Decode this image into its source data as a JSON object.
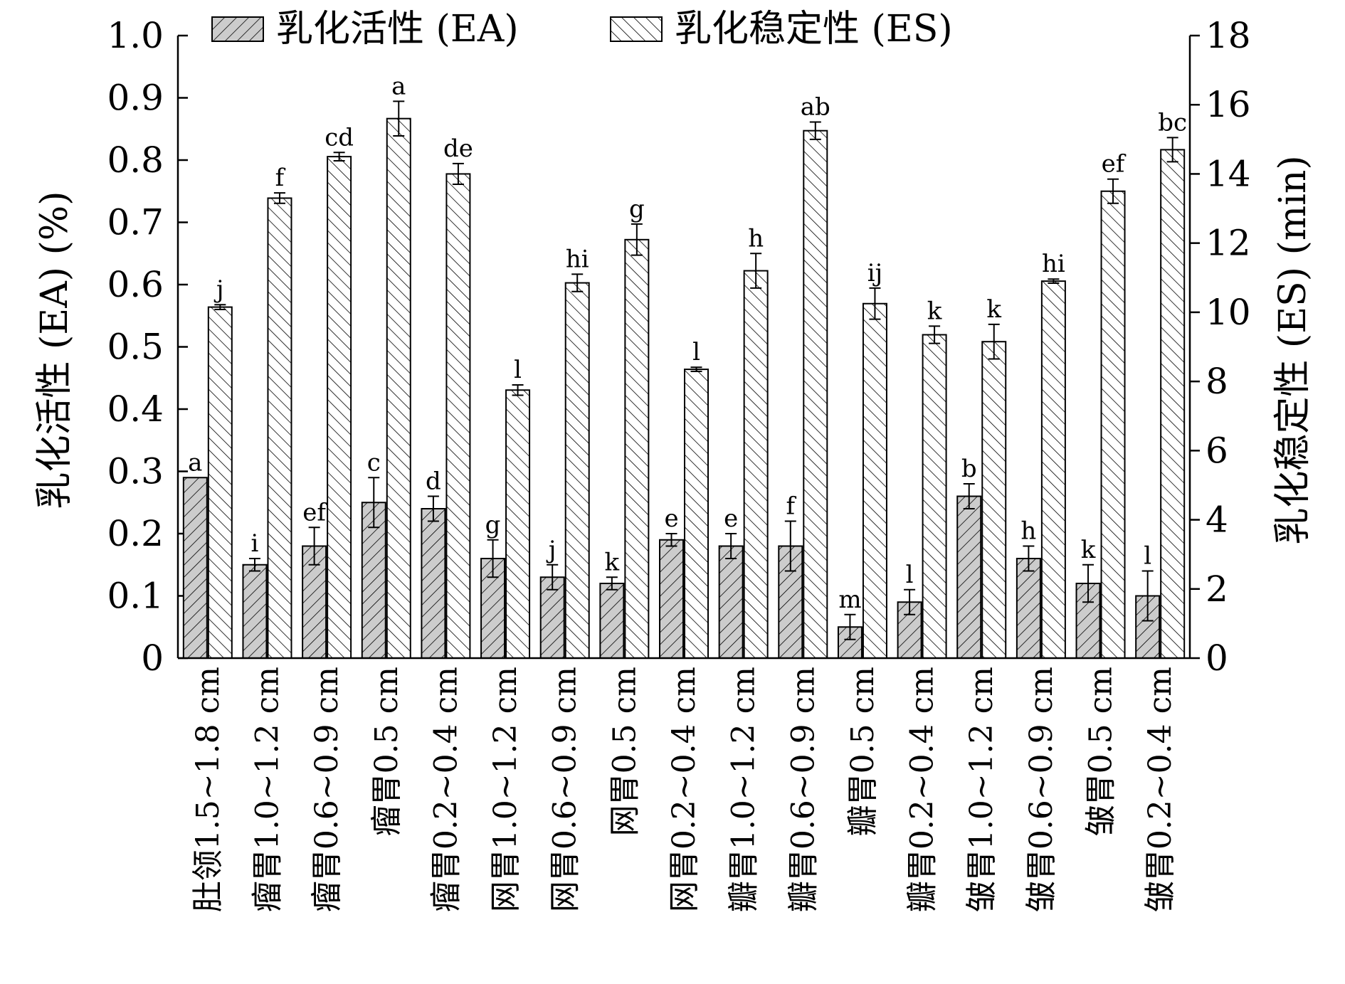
{
  "chart_data": {
    "type": "bar",
    "ylabel": "乳化活性 (EA) (%)",
    "y2label": "乳化稳定性 (ES) (min)",
    "ylim": [
      0,
      1.0
    ],
    "y2lim": [
      0,
      18
    ],
    "yticks": [
      "0",
      "0.1",
      "0.2",
      "0.3",
      "0.4",
      "0.5",
      "0.6",
      "0.7",
      "0.8",
      "0.9",
      "1.0"
    ],
    "y2ticks": [
      "0",
      "2",
      "4",
      "6",
      "8",
      "10",
      "12",
      "14",
      "16",
      "18"
    ],
    "legend_position": "top",
    "categories": [
      "肚领1.5~1.8 cm",
      "瘤胃1.0~1.2 cm",
      "瘤胃0.6~0.9 cm",
      "瘤胃0.5 cm",
      "瘤胃0.2~0.4 cm",
      "网胃1.0~1.2 cm",
      "网胃0.6~0.9 cm",
      "网胃0.5 cm",
      "网胃0.2~0.4 cm",
      "瓣胃1.0~1.2 cm",
      "瓣胃0.6~0.9 cm",
      "瓣胃0.5 cm",
      "瓣胃0.2~0.4 cm",
      "皱胃1.0~1.2 cm",
      "皱胃0.6~0.9 cm",
      "皱胃0.5 cm",
      "皱胃0.2~0.4 cm"
    ],
    "series": [
      {
        "name": "乳化活性 (EA)",
        "axis": "left",
        "pattern": "hatch-gray",
        "fill_color": "#cccccc",
        "values": [
          0.29,
          0.15,
          0.18,
          0.25,
          0.24,
          0.16,
          0.13,
          0.12,
          0.19,
          0.18,
          0.18,
          0.05,
          0.09,
          0.26,
          0.16,
          0.12,
          0.1
        ],
        "errors": [
          0.0,
          0.01,
          0.03,
          0.04,
          0.02,
          0.03,
          0.02,
          0.01,
          0.01,
          0.02,
          0.04,
          0.02,
          0.02,
          0.02,
          0.02,
          0.03,
          0.04
        ],
        "sig_labels": [
          "a",
          "i",
          "ef",
          "c",
          "d",
          "g",
          "j",
          "k",
          "e",
          "e",
          "f",
          "m",
          "l",
          "b",
          "h",
          "k",
          "l"
        ]
      },
      {
        "name": "乳化稳定性 (ES)",
        "axis": "right",
        "pattern": "hatch-white",
        "fill_color": "#ffffff",
        "values": [
          10.15,
          13.3,
          14.5,
          15.6,
          14.0,
          7.75,
          10.85,
          12.1,
          8.35,
          11.2,
          15.25,
          10.25,
          9.35,
          9.15,
          10.9,
          13.5,
          14.7
        ],
        "errors": [
          0.07,
          0.15,
          0.12,
          0.5,
          0.3,
          0.15,
          0.25,
          0.45,
          0.06,
          0.5,
          0.25,
          0.45,
          0.25,
          0.5,
          0.06,
          0.35,
          0.35
        ],
        "sig_labels": [
          "j",
          "f",
          "cd",
          "a",
          "de",
          "l",
          "hi",
          "g",
          "l",
          "h",
          "ab",
          "ij",
          "k",
          "k",
          "hi",
          "ef",
          "bc"
        ]
      }
    ]
  }
}
